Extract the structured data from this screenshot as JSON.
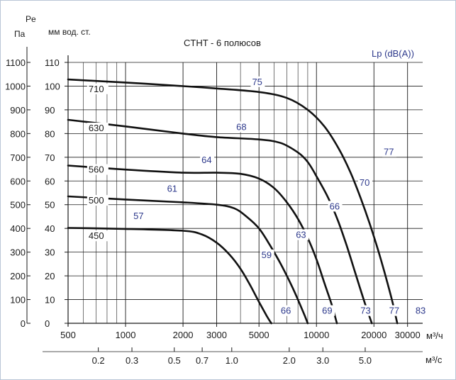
{
  "chart_data": {
    "type": "line",
    "title": "CTHT - 6 полюсов",
    "left_axis_title": "Pe",
    "left_axis_unit": "Па",
    "right_axis_unit": "мм вод. ст.",
    "lp_label": "Lp (dB(A))",
    "x_unit_m3h": "м³/ч",
    "x_unit_m3s": "м³/с",
    "x_scale": "log",
    "xlim": [
      500,
      36000
    ],
    "ylim": [
      0,
      1100
    ],
    "grid": true,
    "ticks_pa": [
      "0",
      "100",
      "200",
      "300",
      "400",
      "500",
      "600",
      "700",
      "800",
      "900",
      "1000",
      "1100"
    ],
    "ticks_mm": [
      "0",
      "10",
      "20",
      "30",
      "40",
      "50",
      "60",
      "70",
      "80",
      "90",
      "100",
      "110"
    ],
    "ticks_m3h": [
      {
        "v": 500,
        "label": "500"
      },
      {
        "v": 1000,
        "label": "1000"
      },
      {
        "v": 2000,
        "label": "2000"
      },
      {
        "v": 3000,
        "label": "3000"
      },
      {
        "v": 5000,
        "label": "5000"
      },
      {
        "v": 10000,
        "label": "10000"
      },
      {
        "v": 20000,
        "label": "20000"
      },
      {
        "v": 30000,
        "label": "30000"
      }
    ],
    "ticks_m3s": [
      {
        "v": 720,
        "label": "0.2"
      },
      {
        "v": 1080,
        "label": "0.3"
      },
      {
        "v": 1800,
        "label": "0.5"
      },
      {
        "v": 2520,
        "label": "0.7"
      },
      {
        "v": 3600,
        "label": "1.0"
      },
      {
        "v": 7200,
        "label": "2.0"
      },
      {
        "v": 10800,
        "label": "3.0"
      },
      {
        "v": 18000,
        "label": "5.0"
      }
    ],
    "series": [
      {
        "name": "710",
        "label_at": [
          640,
          975
        ],
        "points": [
          [
            500,
            1028
          ],
          [
            1000,
            1015
          ],
          [
            2000,
            1000
          ],
          [
            3000,
            990
          ],
          [
            5000,
            975
          ],
          [
            7000,
            950
          ],
          [
            9000,
            900
          ],
          [
            11000,
            830
          ],
          [
            13000,
            740
          ],
          [
            15000,
            640
          ],
          [
            17000,
            530
          ],
          [
            19000,
            420
          ],
          [
            21000,
            310
          ],
          [
            23000,
            200
          ],
          [
            25000,
            90
          ],
          [
            26500,
            0
          ]
        ]
      },
      {
        "name": "630",
        "label_at": [
          640,
          810
        ],
        "points": [
          [
            500,
            858
          ],
          [
            1000,
            830
          ],
          [
            2000,
            800
          ],
          [
            3000,
            785
          ],
          [
            5000,
            775
          ],
          [
            6500,
            760
          ],
          [
            8000,
            720
          ],
          [
            9000,
            680
          ],
          [
            10000,
            620
          ],
          [
            11500,
            530
          ],
          [
            13000,
            430
          ],
          [
            14500,
            320
          ],
          [
            16000,
            210
          ],
          [
            18000,
            80
          ],
          [
            19500,
            0
          ]
        ]
      },
      {
        "name": "560",
        "label_at": [
          640,
          635
        ],
        "points": [
          [
            500,
            665
          ],
          [
            1000,
            648
          ],
          [
            2000,
            635
          ],
          [
            3000,
            635
          ],
          [
            4000,
            630
          ],
          [
            5000,
            610
          ],
          [
            6000,
            570
          ],
          [
            7000,
            510
          ],
          [
            8000,
            440
          ],
          [
            9000,
            360
          ],
          [
            10000,
            270
          ],
          [
            11000,
            170
          ],
          [
            12000,
            80
          ],
          [
            12800,
            0
          ]
        ]
      },
      {
        "name": "500",
        "label_at": [
          640,
          505
        ],
        "points": [
          [
            500,
            535
          ],
          [
            1000,
            522
          ],
          [
            2000,
            510
          ],
          [
            3000,
            500
          ],
          [
            3700,
            485
          ],
          [
            4300,
            450
          ],
          [
            5000,
            400
          ],
          [
            5700,
            330
          ],
          [
            6500,
            250
          ],
          [
            7500,
            150
          ],
          [
            8500,
            50
          ],
          [
            9000,
            0
          ]
        ]
      },
      {
        "name": "450",
        "label_at": [
          640,
          355
        ],
        "points": [
          [
            500,
            402
          ],
          [
            1000,
            398
          ],
          [
            2000,
            390
          ],
          [
            2500,
            375
          ],
          [
            3000,
            340
          ],
          [
            3500,
            290
          ],
          [
            4000,
            230
          ],
          [
            4500,
            160
          ],
          [
            5000,
            90
          ],
          [
            5500,
            30
          ],
          [
            5800,
            0
          ]
        ]
      }
    ],
    "noise_labels": [
      {
        "text": "75",
        "at": [
          4600,
          1005
        ]
      },
      {
        "text": "68",
        "at": [
          3800,
          815
        ]
      },
      {
        "text": "64",
        "at": [
          2500,
          675
        ]
      },
      {
        "text": "61",
        "at": [
          1650,
          555
        ]
      },
      {
        "text": "57",
        "at": [
          1100,
          440
        ]
      },
      {
        "text": "77",
        "at": [
          22500,
          710
        ]
      },
      {
        "text": "70",
        "at": [
          16800,
          580
        ]
      },
      {
        "text": "66",
        "at": [
          11700,
          480
        ]
      },
      {
        "text": "63",
        "at": [
          7800,
          360
        ]
      },
      {
        "text": "59",
        "at": [
          5150,
          275
        ]
      },
      {
        "text": "66",
        "at": [
          6500,
          40
        ]
      },
      {
        "text": "69",
        "at": [
          10700,
          40
        ]
      },
      {
        "text": "73",
        "at": [
          17000,
          40
        ]
      },
      {
        "text": "77",
        "at": [
          24000,
          40
        ]
      },
      {
        "text": "83",
        "at": [
          33000,
          40
        ]
      }
    ]
  }
}
